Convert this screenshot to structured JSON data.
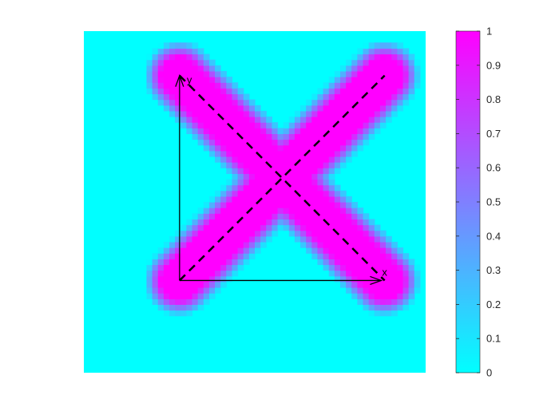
{
  "chart_data": {
    "type": "heatmap",
    "title": "",
    "xlabel": "",
    "ylabel": "",
    "colormap": "cool",
    "colormap_range": [
      0,
      1
    ],
    "background_value": 0,
    "stroke_value": 1,
    "colors": {
      "low": "#00ffff",
      "high": "#ff00ff",
      "axes_arrows": "#000000",
      "dashed_lines": "#000000"
    },
    "shape_description": "X formed by two crossing diagonal strokes",
    "field_extent": [
      0,
      100,
      0,
      100
    ],
    "strokes": [
      {
        "from": [
          28,
          87
        ],
        "to": [
          88,
          27
        ]
      },
      {
        "from": [
          28,
          27
        ],
        "to": [
          88,
          87
        ]
      }
    ],
    "stroke_halfwidth": 8,
    "stroke_blur": 2.5,
    "inner_axes": {
      "origin": [
        28,
        27
      ],
      "x_end": [
        87,
        27
      ],
      "y_end": [
        28,
        87
      ],
      "x_label": "x",
      "y_label": "y"
    },
    "colorbar": {
      "ticks": [
        0,
        0.1,
        0.2,
        0.3,
        0.4,
        0.5,
        0.6,
        0.7,
        0.8,
        0.9,
        1
      ],
      "tick_labels": [
        "0",
        "0.1",
        "0.2",
        "0.3",
        "0.4",
        "0.5",
        "0.6",
        "0.7",
        "0.8",
        "0.9",
        "1"
      ],
      "location": "right"
    },
    "grid": false,
    "legend": "none"
  }
}
